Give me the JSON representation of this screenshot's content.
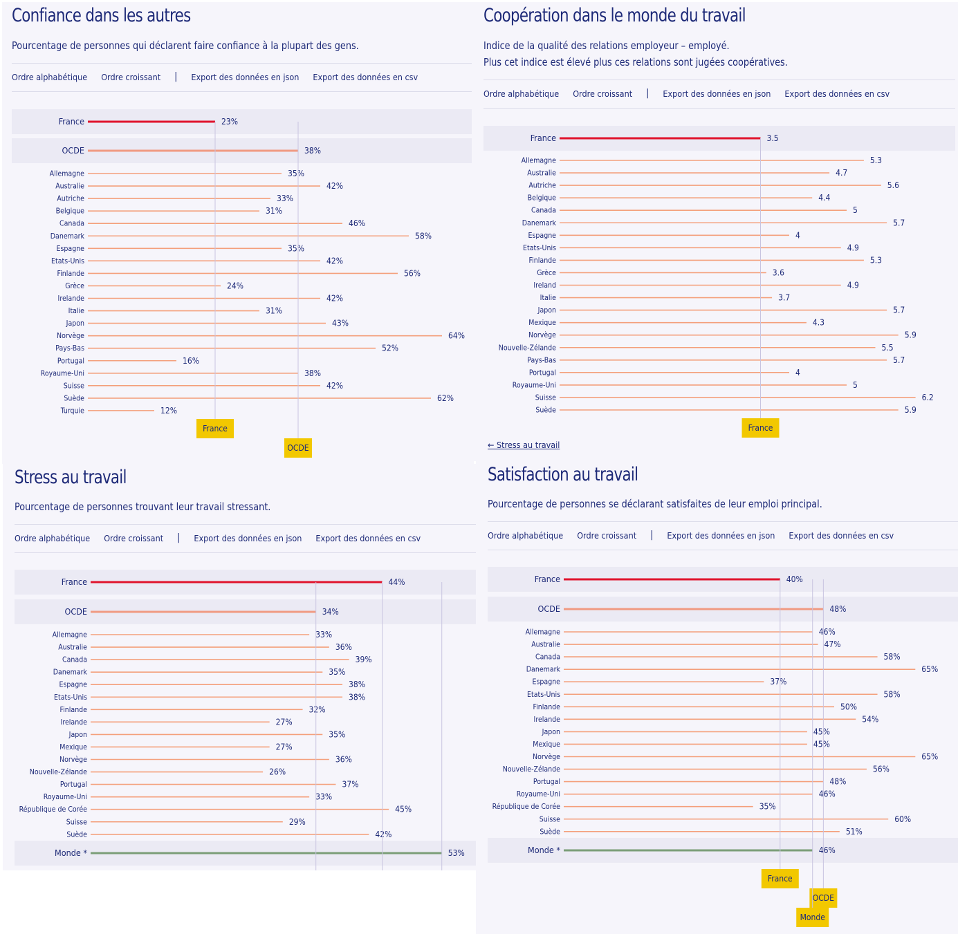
{
  "colors": {
    "france": "#e0142d",
    "oecd": "#f09a82",
    "bar": "#f4a07c",
    "world": "#7b9e78",
    "tag": "#f2c800",
    "guide": "#c8c4e0",
    "band": "#ebeaf4",
    "text": "#1e2a78"
  },
  "toolbar": {
    "alpha": "Ordre alphabétique",
    "asc": "Ordre croissant",
    "sep": "|",
    "json": "Export des données en json",
    "csv": "Export des données en csv"
  },
  "link_stress": "← Stress au travail",
  "chart_data": [
    {
      "type": "bar",
      "title": "Confiance dans les autres",
      "subtitle": [
        "Pourcentage de personnes qui déclarent faire confiance à la plupart des gens."
      ],
      "unit": "%",
      "highlight": [
        {
          "name": "France",
          "value": 23,
          "kind": "france"
        },
        {
          "name": "OCDE",
          "value": 38,
          "kind": "oecd"
        }
      ],
      "categories": [
        "Allemagne",
        "Australie",
        "Autriche",
        "Belgique",
        "Canada",
        "Danemark",
        "Espagne",
        "Etats-Unis",
        "Finlande",
        "Grèce",
        "Irelande",
        "Italie",
        "Japon",
        "Norvège",
        "Pays-Bas",
        "Portugal",
        "Royaume-Uni",
        "Suisse",
        "Suède",
        "Turquie"
      ],
      "values": [
        35,
        42,
        33,
        31,
        46,
        58,
        35,
        42,
        56,
        24,
        42,
        31,
        43,
        64,
        52,
        16,
        38,
        42,
        62,
        12
      ],
      "world": null,
      "references": [
        {
          "label": "France",
          "value": 23
        },
        {
          "label": "OCDE",
          "value": 38
        }
      ]
    },
    {
      "type": "bar",
      "title": "Coopération dans le monde du travail",
      "subtitle": [
        "Indice de la qualité des relations employeur – employé.",
        "Plus cet indice est élevé plus ces relations sont jugées coopératives."
      ],
      "unit": "",
      "highlight": [
        {
          "name": "France",
          "value": 3.5,
          "kind": "france"
        }
      ],
      "categories": [
        "Allemagne",
        "Australie",
        "Autriche",
        "Belgique",
        "Canada",
        "Danemark",
        "Espagne",
        "Etats-Unis",
        "Finlande",
        "Grèce",
        "Ireland",
        "Italie",
        "Japon",
        "Mexique",
        "Norvège",
        "Nouvelle-Zélande",
        "Pays-Bas",
        "Portugal",
        "Royaume-Uni",
        "Suisse",
        "Suède"
      ],
      "values": [
        5.3,
        4.7,
        5.6,
        4.4,
        5,
        5.7,
        4,
        4.9,
        5.3,
        3.6,
        4.9,
        3.7,
        5.7,
        4.3,
        5.9,
        5.5,
        5.7,
        4,
        5,
        6.2,
        5.9
      ],
      "world": null,
      "references": [
        {
          "label": "France",
          "value": 3.5
        }
      ]
    },
    {
      "type": "bar",
      "title": "Stress au travail",
      "subtitle": [
        "Pourcentage de personnes trouvant leur travail stressant."
      ],
      "unit": "%",
      "highlight": [
        {
          "name": "France",
          "value": 44,
          "kind": "france"
        },
        {
          "name": "OCDE",
          "value": 34,
          "kind": "oecd"
        }
      ],
      "categories": [
        "Allemagne",
        "Australie",
        "Canada",
        "Danemark",
        "Espagne",
        "Etats-Unis",
        "Finlande",
        "Irelande",
        "Japon",
        "Mexique",
        "Norvège",
        "Nouvelle-Zélande",
        "Portugal",
        "Royaume-Uni",
        "République de Corée",
        "Suisse",
        "Suède"
      ],
      "values": [
        33,
        36,
        39,
        35,
        38,
        38,
        32,
        27,
        35,
        27,
        36,
        26,
        37,
        33,
        45,
        29,
        42
      ],
      "world": {
        "name": "Monde *",
        "value": 53
      },
      "references": [
        {
          "label": "",
          "value": 34
        },
        {
          "label": "",
          "value": 44
        },
        {
          "label": "",
          "value": 53
        }
      ]
    },
    {
      "type": "bar",
      "title": "Satisfaction au travail",
      "subtitle": [
        "Pourcentage de personnes se déclarant satisfaites de leur emploi principal."
      ],
      "unit": "%",
      "highlight": [
        {
          "name": "France",
          "value": 40,
          "kind": "france"
        },
        {
          "name": "OCDE",
          "value": 48,
          "kind": "oecd"
        }
      ],
      "categories": [
        "Allemagne",
        "Australie",
        "Canada",
        "Danemark",
        "Espagne",
        "Etats-Unis",
        "Finlande",
        "Irelande",
        "Japon",
        "Mexique",
        "Norvège",
        "Nouvelle-Zélande",
        "Portugal",
        "Royaume-Uni",
        "République de Corée",
        "Suisse",
        "Suède"
      ],
      "values": [
        46,
        47,
        58,
        65,
        37,
        58,
        50,
        54,
        45,
        45,
        65,
        56,
        48,
        46,
        35,
        60,
        51
      ],
      "world": {
        "name": "Monde *",
        "value": 46
      },
      "references": [
        {
          "label": "France",
          "value": 40
        },
        {
          "label": "OCDE",
          "value": 48
        },
        {
          "label": "Monde",
          "value": 46
        }
      ]
    }
  ]
}
